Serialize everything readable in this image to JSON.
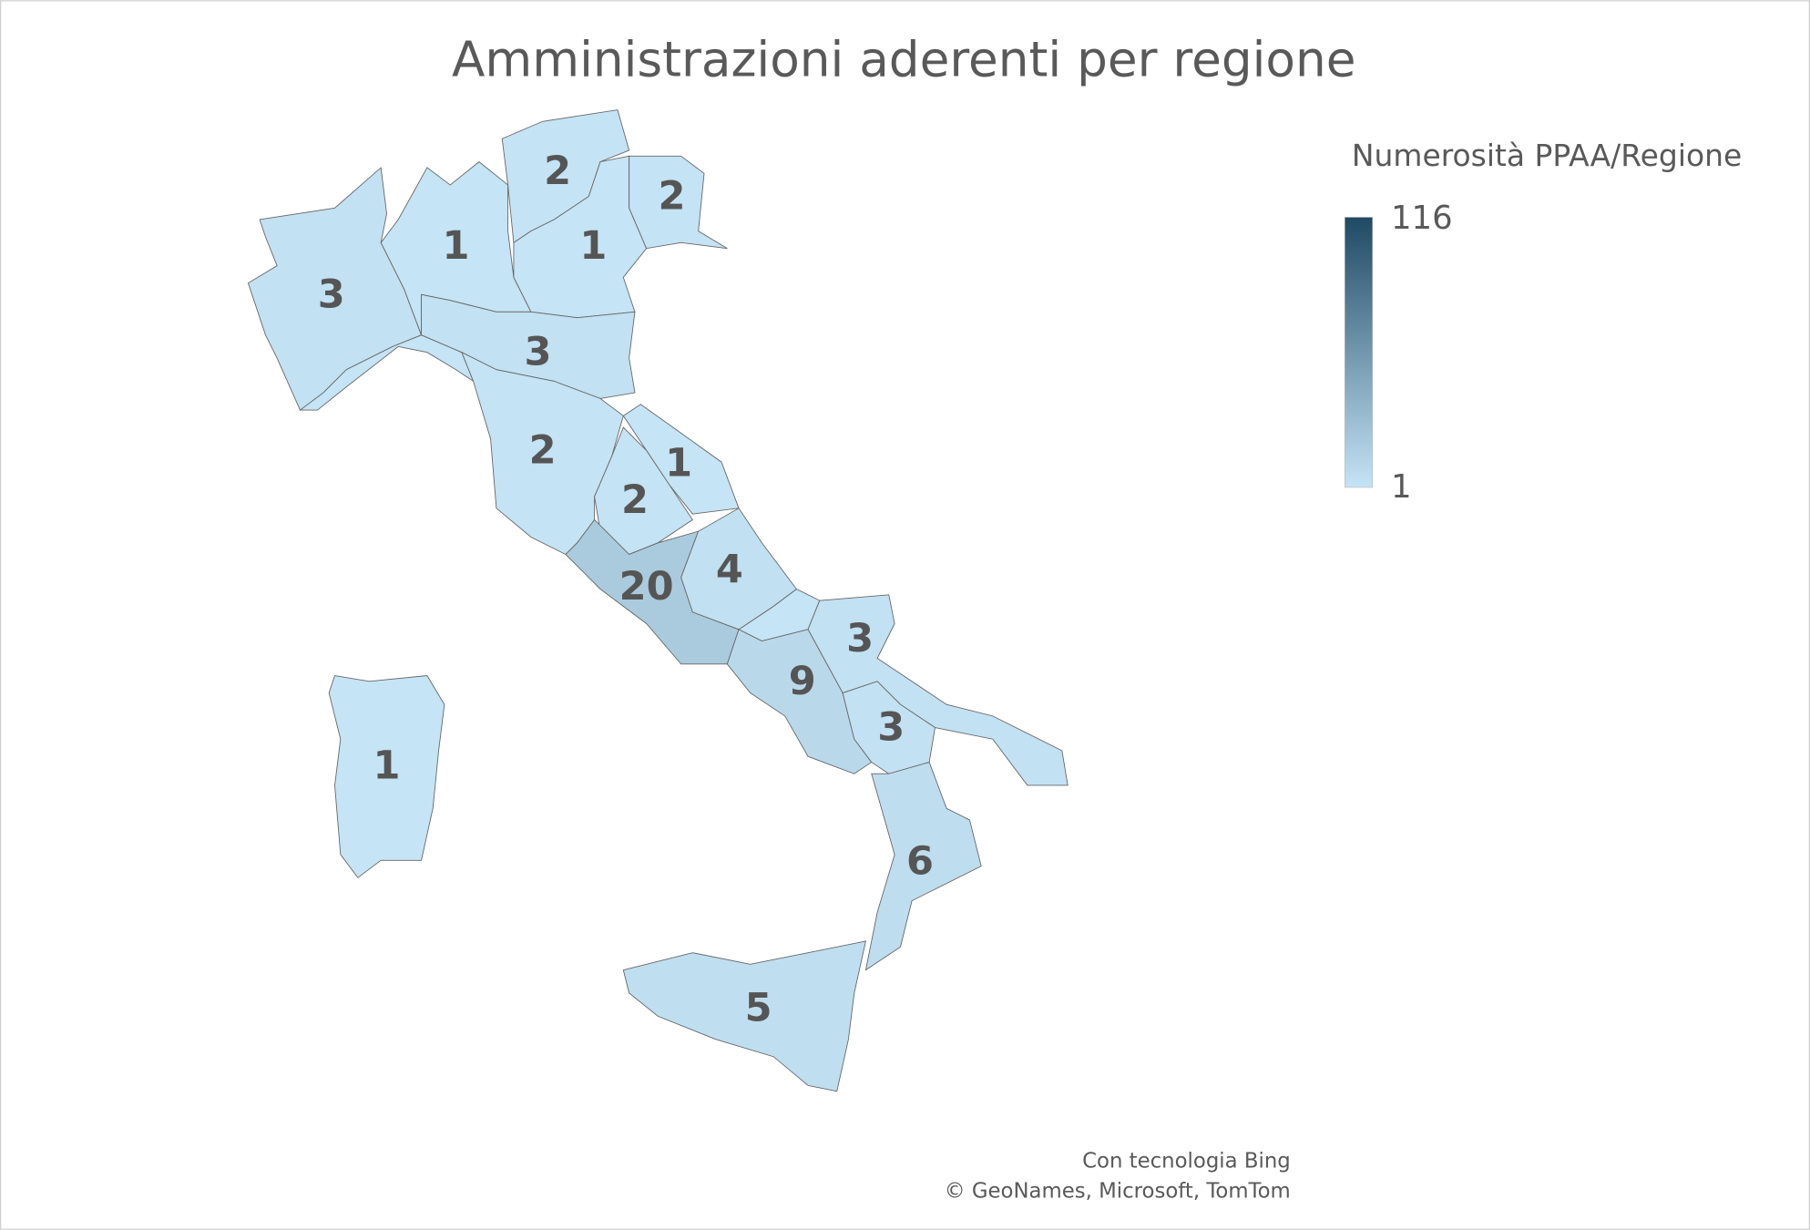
{
  "chart_data": {
    "type": "choropleth",
    "title": "Amministrazioni aderenti per regione",
    "legend_title": "Numerosità PPAA/Regione",
    "scale": {
      "min": 1,
      "max": 116,
      "colors": [
        "#c5e4f5",
        "#1f4a63"
      ]
    },
    "values": [
      3,
      1,
      2,
      1,
      2,
      3,
      2,
      1,
      2,
      20,
      4,
      3,
      9,
      3,
      6,
      5,
      1
    ],
    "attribution": [
      "Con tecnologia Bing",
      "© GeoNames, Microsoft, TomTom"
    ]
  }
}
